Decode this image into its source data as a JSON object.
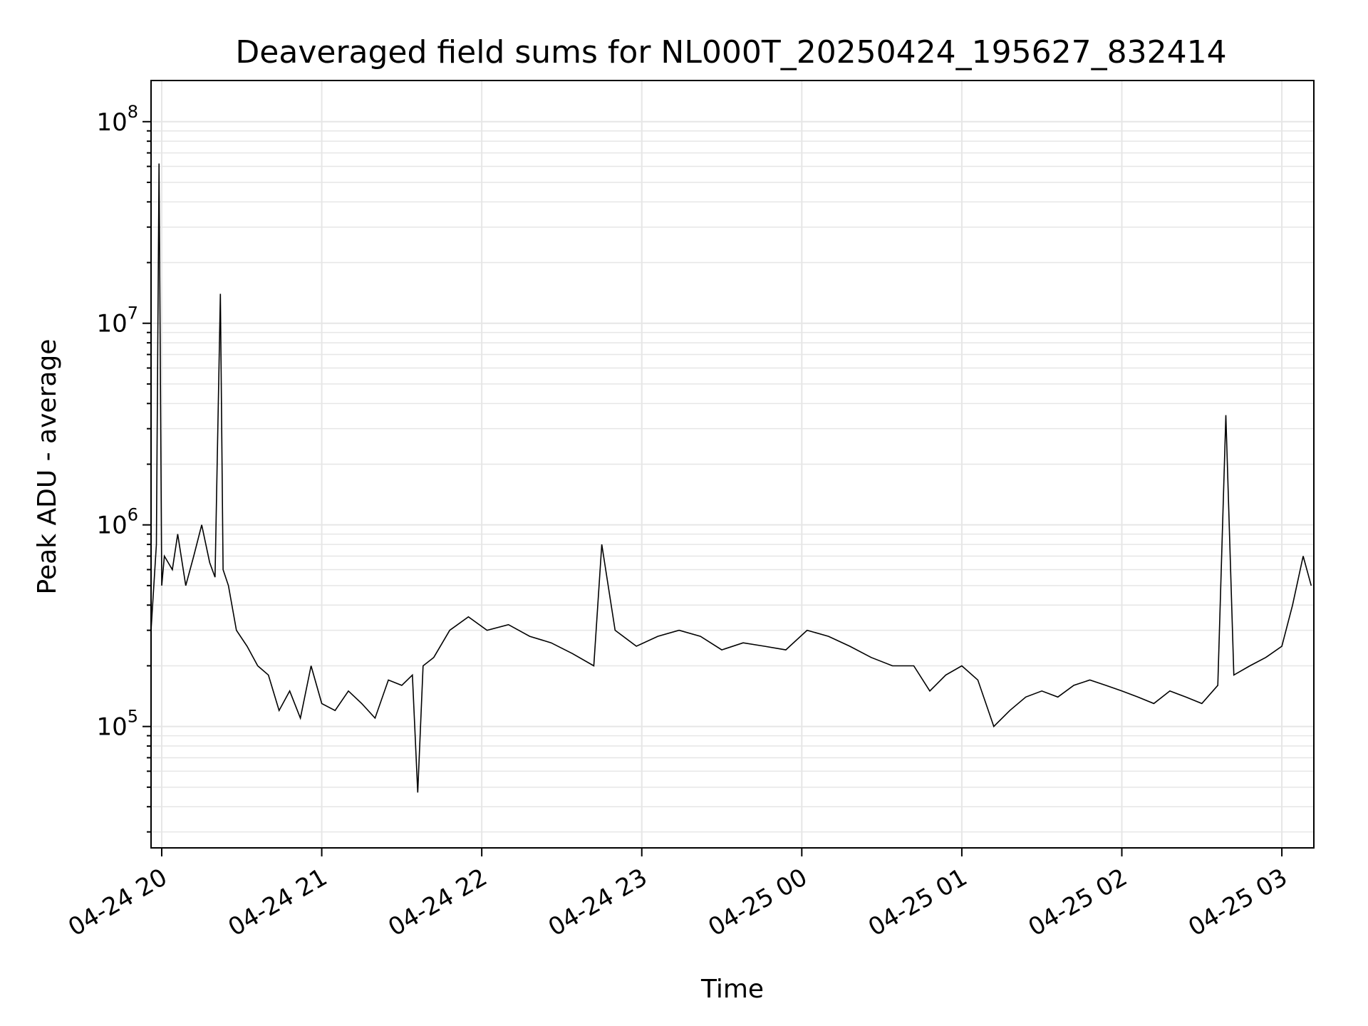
{
  "chart_data": {
    "type": "line",
    "title": "Deaveraged field sums for NL000T_20250424_195627_832414",
    "xlabel": "Time",
    "ylabel": "Peak ADU - average",
    "yscale": "log",
    "ylim": [
      25000,
      160000000
    ],
    "xlim": [
      "2025-04-24 19:56",
      "2025-04-25 03:12"
    ],
    "grid": true,
    "line_color": "#000000",
    "x_ticks": [
      {
        "value": "2025-04-24 20:00",
        "label": "04-24 20"
      },
      {
        "value": "2025-04-24 21:00",
        "label": "04-24 21"
      },
      {
        "value": "2025-04-24 22:00",
        "label": "04-24 22"
      },
      {
        "value": "2025-04-24 23:00",
        "label": "04-24 23"
      },
      {
        "value": "2025-04-25 00:00",
        "label": "04-25 00"
      },
      {
        "value": "2025-04-25 01:00",
        "label": "04-25 01"
      },
      {
        "value": "2025-04-25 02:00",
        "label": "04-25 02"
      },
      {
        "value": "2025-04-25 03:00",
        "label": "04-25 03"
      }
    ],
    "y_ticks": [
      {
        "value": 100000,
        "base": "10",
        "exp": "5"
      },
      {
        "value": 1000000,
        "base": "10",
        "exp": "6"
      },
      {
        "value": 10000000,
        "base": "10",
        "exp": "7"
      },
      {
        "value": 100000000,
        "base": "10",
        "exp": "8"
      }
    ],
    "series": [
      {
        "x": [
          "2025-04-24 19:56",
          "2025-04-24 19:58",
          "2025-04-24 19:59",
          "2025-04-24 20:00",
          "2025-04-24 20:01",
          "2025-04-24 20:04",
          "2025-04-24 20:06",
          "2025-04-24 20:09",
          "2025-04-24 20:12",
          "2025-04-24 20:15",
          "2025-04-24 20:18",
          "2025-04-24 20:20",
          "2025-04-24 20:22",
          "2025-04-24 20:23",
          "2025-04-24 20:25",
          "2025-04-24 20:28",
          "2025-04-24 20:32",
          "2025-04-24 20:36",
          "2025-04-24 20:40",
          "2025-04-24 20:44",
          "2025-04-24 20:48",
          "2025-04-24 20:52",
          "2025-04-24 20:56",
          "2025-04-24 21:00",
          "2025-04-24 21:05",
          "2025-04-24 21:10",
          "2025-04-24 21:15",
          "2025-04-24 21:20",
          "2025-04-24 21:25",
          "2025-04-24 21:30",
          "2025-04-24 21:34",
          "2025-04-24 21:36",
          "2025-04-24 21:38",
          "2025-04-24 21:42",
          "2025-04-24 21:48",
          "2025-04-24 21:55",
          "2025-04-24 22:02",
          "2025-04-24 22:10",
          "2025-04-24 22:18",
          "2025-04-24 22:26",
          "2025-04-24 22:34",
          "2025-04-24 22:42",
          "2025-04-24 22:45",
          "2025-04-24 22:50",
          "2025-04-24 22:58",
          "2025-04-24 23:06",
          "2025-04-24 23:14",
          "2025-04-24 23:22",
          "2025-04-24 23:30",
          "2025-04-24 23:38",
          "2025-04-24 23:46",
          "2025-04-24 23:54",
          "2025-04-25 00:02",
          "2025-04-25 00:10",
          "2025-04-25 00:18",
          "2025-04-25 00:26",
          "2025-04-25 00:34",
          "2025-04-25 00:42",
          "2025-04-25 00:48",
          "2025-04-25 00:54",
          "2025-04-25 01:00",
          "2025-04-25 01:06",
          "2025-04-25 01:12",
          "2025-04-25 01:18",
          "2025-04-25 01:24",
          "2025-04-25 01:30",
          "2025-04-25 01:36",
          "2025-04-25 01:42",
          "2025-04-25 01:48",
          "2025-04-25 01:54",
          "2025-04-25 02:00",
          "2025-04-25 02:06",
          "2025-04-25 02:12",
          "2025-04-25 02:18",
          "2025-04-25 02:24",
          "2025-04-25 02:30",
          "2025-04-25 02:36",
          "2025-04-25 02:39",
          "2025-04-25 02:42",
          "2025-04-25 02:48",
          "2025-04-25 02:54",
          "2025-04-25 03:00",
          "2025-04-25 03:04",
          "2025-04-25 03:08",
          "2025-04-25 03:11"
        ],
        "y": [
          300000,
          800000,
          62000000,
          500000,
          700000,
          600000,
          900000,
          500000,
          700000,
          1000000,
          650000,
          550000,
          14000000,
          600000,
          500000,
          300000,
          250000,
          200000,
          180000,
          120000,
          150000,
          110000,
          200000,
          130000,
          120000,
          150000,
          130000,
          110000,
          170000,
          160000,
          180000,
          47000,
          200000,
          220000,
          300000,
          350000,
          300000,
          320000,
          280000,
          260000,
          230000,
          200000,
          800000,
          300000,
          250000,
          280000,
          300000,
          280000,
          240000,
          260000,
          250000,
          240000,
          300000,
          280000,
          250000,
          220000,
          200000,
          200000,
          150000,
          180000,
          200000,
          170000,
          100000,
          120000,
          140000,
          150000,
          140000,
          160000,
          170000,
          160000,
          150000,
          140000,
          130000,
          150000,
          140000,
          130000,
          160000,
          3500000,
          180000,
          200000,
          220000,
          250000,
          400000,
          700000,
          500000
        ]
      }
    ]
  }
}
